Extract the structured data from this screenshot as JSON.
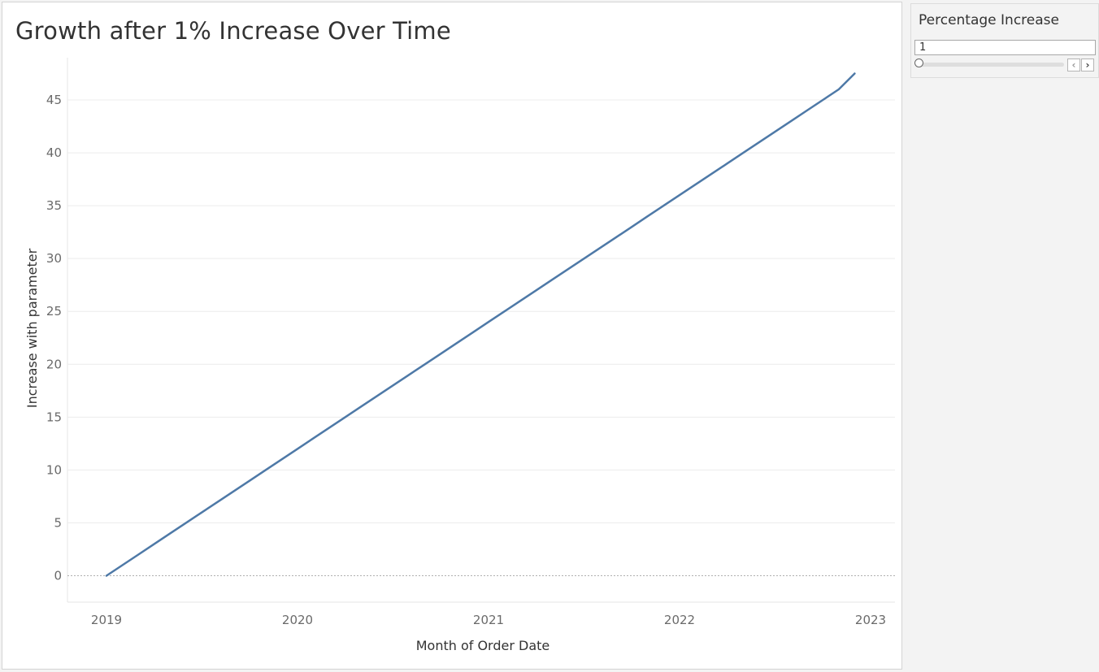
{
  "title": "Growth after 1% Increase Over Time",
  "parameter": {
    "title": "Percentage Increase",
    "value": "1",
    "slider_level": 0,
    "prev_icon": "chevron-left-icon",
    "next_icon": "chevron-right-icon",
    "prev_glyph": "‹",
    "next_glyph": "›"
  },
  "colors": {
    "line": "#4e79a7",
    "gridline": "#ececec",
    "zero_line": "#b0b0b0"
  },
  "chart_data": {
    "type": "line",
    "title": "Growth after 1% Increase Over Time",
    "xlabel": "Month of Order Date",
    "ylabel": "Increase with parameter",
    "x_ticks": [
      "2019",
      "2020",
      "2021",
      "2022",
      "2023"
    ],
    "y_ticks": [
      0,
      5,
      10,
      15,
      20,
      25,
      30,
      35,
      40,
      45
    ],
    "ylim": [
      -2.5,
      49
    ],
    "xlim": [
      "2018-12",
      "2023-02"
    ],
    "grid": "horizontal",
    "series": [
      {
        "x": [
          "2019-01",
          "2019-02",
          "2019-03",
          "2019-04",
          "2019-05",
          "2019-06",
          "2019-07",
          "2019-08",
          "2019-09",
          "2019-10",
          "2019-11",
          "2019-12",
          "2020-01",
          "2020-02",
          "2020-03",
          "2020-04",
          "2020-05",
          "2020-06",
          "2020-07",
          "2020-08",
          "2020-09",
          "2020-10",
          "2020-11",
          "2020-12",
          "2021-01",
          "2021-02",
          "2021-03",
          "2021-04",
          "2021-05",
          "2021-06",
          "2021-07",
          "2021-08",
          "2021-09",
          "2021-10",
          "2021-11",
          "2021-12",
          "2022-01",
          "2022-02",
          "2022-03",
          "2022-04",
          "2022-05",
          "2022-06",
          "2022-07",
          "2022-08",
          "2022-09",
          "2022-10",
          "2022-11",
          "2022-12"
        ],
        "values": [
          0,
          1,
          2,
          3,
          4,
          5,
          6,
          7,
          8,
          9,
          10,
          11,
          12,
          13,
          14,
          15,
          16,
          17,
          18,
          19,
          20,
          21,
          22,
          23,
          24,
          25,
          26,
          27,
          28,
          29,
          30,
          31,
          32,
          33,
          34,
          35,
          36,
          37,
          38,
          39,
          40,
          41,
          42,
          43,
          44,
          45,
          46,
          47.5
        ]
      }
    ]
  }
}
